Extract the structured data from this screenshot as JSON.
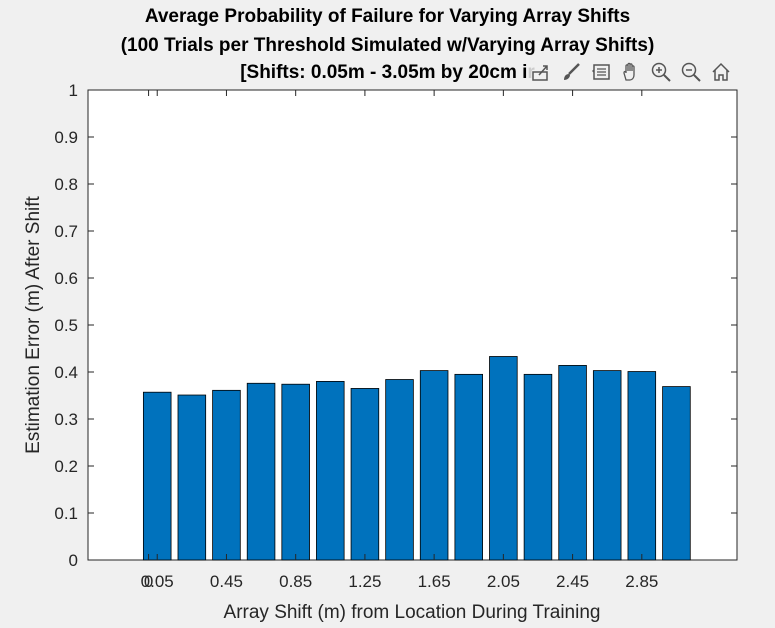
{
  "figure": {
    "title_lines": [
      "Average Probability of Failure for Varying Array Shifts",
      "(100 Trials per Threshold Simulated w/Varying Array Shifts)",
      "[Shifts: 0.05m - 3.05m by 20cm ir"
    ],
    "toolbar": [
      "export-icon",
      "brush-icon",
      "data-tips-icon",
      "pan-icon",
      "zoom-in-icon",
      "zoom-out-icon",
      "home-icon"
    ]
  },
  "chart_data": {
    "type": "bar",
    "title": "Average Probability of Failure for Varying Array Shifts (100 Trials per Threshold Simulated w/Varying Array Shifts) [Shifts: 0.05m - 3.05m by 20cm ir",
    "xlabel": "Array Shift (m) from Location During Training",
    "ylabel": "Estimation Error (m) After Shift",
    "x": [
      0.05,
      0.25,
      0.45,
      0.65,
      0.85,
      1.05,
      1.25,
      1.45,
      1.65,
      1.85,
      2.05,
      2.25,
      2.45,
      2.65,
      2.85,
      3.05
    ],
    "values": [
      0.357,
      0.351,
      0.361,
      0.376,
      0.374,
      0.38,
      0.365,
      0.384,
      0.403,
      0.395,
      0.433,
      0.395,
      0.414,
      0.403,
      0.401,
      0.369
    ],
    "xticks": [
      0,
      0.05,
      0.45,
      0.85,
      1.25,
      1.65,
      2.05,
      2.45,
      2.85
    ],
    "xtick_labels": [
      "0",
      "0.05",
      "0.45",
      "0.85",
      "1.25",
      "1.65",
      "2.05",
      "2.45",
      "2.85"
    ],
    "yticks": [
      0,
      0.1,
      0.2,
      0.3,
      0.4,
      0.5,
      0.6,
      0.7,
      0.8,
      0.9,
      1
    ],
    "ytick_labels": [
      "0",
      "0.1",
      "0.2",
      "0.3",
      "0.4",
      "0.5",
      "0.6",
      "0.7",
      "0.8",
      "0.9",
      "1"
    ],
    "ylim": [
      0,
      1
    ],
    "grid": false,
    "bar_color": "#0072BD"
  }
}
